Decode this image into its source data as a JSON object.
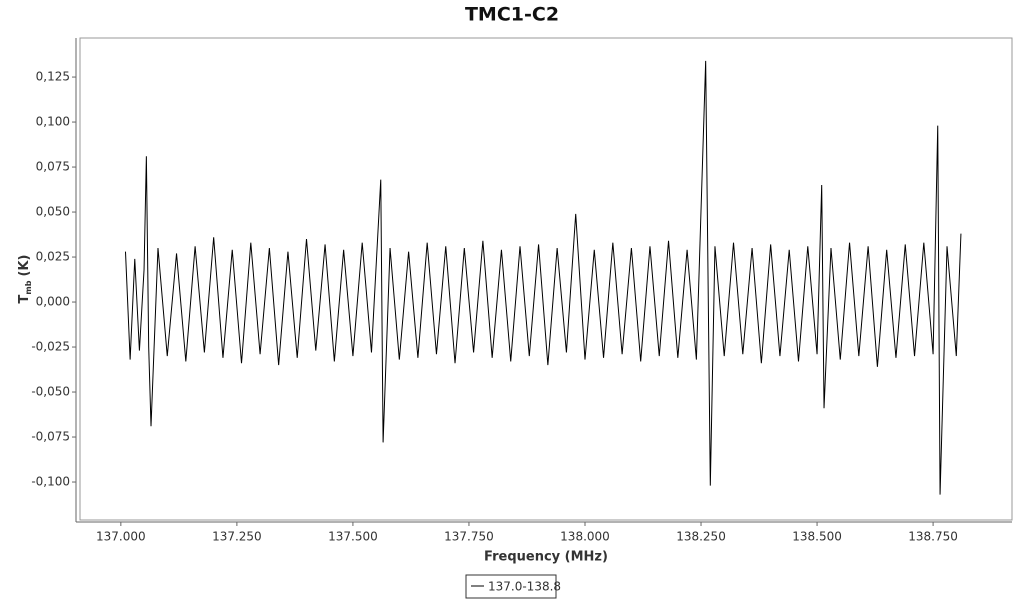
{
  "chart_data": {
    "type": "line",
    "title": "TMC1-C2",
    "x_label": "Frequency (MHz)",
    "y_label": {
      "main": "T",
      "sub": "mb",
      "unit": "(K)"
    },
    "xlim": [
      136.912,
      138.92
    ],
    "ylim": [
      -0.1211,
      0.1467
    ],
    "xticks": [
      {
        "value": 137,
        "label": "137.000"
      },
      {
        "value": 137.25,
        "label": "137.250"
      },
      {
        "value": 137.5,
        "label": "137.500"
      },
      {
        "value": 137.75,
        "label": "137.750"
      },
      {
        "value": 138,
        "label": "138.000"
      },
      {
        "value": 138.25,
        "label": "138.250"
      },
      {
        "value": 138.5,
        "label": "138.500"
      },
      {
        "value": 138.75,
        "label": "138.750"
      }
    ],
    "yticks": [
      {
        "value": -0.1,
        "label": "-0,100"
      },
      {
        "value": -0.075,
        "label": "-0,075"
      },
      {
        "value": -0.05,
        "label": "-0,050"
      },
      {
        "value": -0.025,
        "label": "-0,025"
      },
      {
        "value": 0,
        "label": "0,000"
      },
      {
        "value": 0.025,
        "label": "0,025"
      },
      {
        "value": 0.05,
        "label": "0,050"
      },
      {
        "value": 0.075,
        "label": "0,075"
      },
      {
        "value": 0.1,
        "label": "0,100"
      },
      {
        "value": 0.125,
        "label": "0,125"
      }
    ],
    "legend": "bottom",
    "x": [
      137.01,
      137.02,
      137.03,
      137.04,
      137.05,
      137.055,
      137.06,
      137.065,
      137.08,
      137.1,
      137.12,
      137.14,
      137.16,
      137.18,
      137.2,
      137.22,
      137.24,
      137.26,
      137.28,
      137.3,
      137.32,
      137.34,
      137.36,
      137.38,
      137.4,
      137.42,
      137.44,
      137.46,
      137.48,
      137.5,
      137.52,
      137.54,
      137.56,
      137.565,
      137.58,
      137.6,
      137.62,
      137.64,
      137.66,
      137.68,
      137.7,
      137.72,
      137.74,
      137.76,
      137.78,
      137.8,
      137.82,
      137.84,
      137.86,
      137.88,
      137.9,
      137.92,
      137.94,
      137.96,
      137.98,
      138.0,
      138.02,
      138.04,
      138.06,
      138.08,
      138.1,
      138.12,
      138.14,
      138.16,
      138.18,
      138.2,
      138.22,
      138.24,
      138.26,
      138.27,
      138.28,
      138.3,
      138.32,
      138.34,
      138.36,
      138.38,
      138.4,
      138.42,
      138.44,
      138.46,
      138.48,
      138.5,
      138.51,
      138.515,
      138.53,
      138.55,
      138.57,
      138.59,
      138.61,
      138.63,
      138.65,
      138.67,
      138.69,
      138.71,
      138.73,
      138.75,
      138.76,
      138.765,
      138.78,
      138.8,
      138.81
    ],
    "series": [
      {
        "name": "137.0-138.8",
        "color": "#000000",
        "values": [
          0.028,
          -0.032,
          0.024,
          -0.027,
          0.018,
          0.081,
          -0.025,
          -0.069,
          0.03,
          -0.03,
          0.027,
          -0.033,
          0.031,
          -0.028,
          0.036,
          -0.031,
          0.029,
          -0.034,
          0.033,
          -0.029,
          0.03,
          -0.035,
          0.028,
          -0.031,
          0.035,
          -0.027,
          0.032,
          -0.033,
          0.029,
          -0.03,
          0.033,
          -0.028,
          0.068,
          -0.078,
          0.03,
          -0.032,
          0.028,
          -0.031,
          0.033,
          -0.029,
          0.031,
          -0.034,
          0.03,
          -0.028,
          0.034,
          -0.031,
          0.029,
          -0.033,
          0.031,
          -0.03,
          0.032,
          -0.035,
          0.03,
          -0.028,
          0.049,
          -0.032,
          0.029,
          -0.031,
          0.033,
          -0.029,
          0.03,
          -0.033,
          0.031,
          -0.03,
          0.034,
          -0.031,
          0.029,
          -0.032,
          0.134,
          -0.102,
          0.031,
          -0.03,
          0.033,
          -0.029,
          0.03,
          -0.034,
          0.032,
          -0.03,
          0.029,
          -0.033,
          0.031,
          -0.029,
          0.065,
          -0.059,
          0.03,
          -0.032,
          0.033,
          -0.03,
          0.031,
          -0.036,
          0.029,
          -0.031,
          0.032,
          -0.03,
          0.033,
          -0.029,
          0.098,
          -0.107,
          0.031,
          -0.03,
          0.038
        ]
      }
    ]
  }
}
